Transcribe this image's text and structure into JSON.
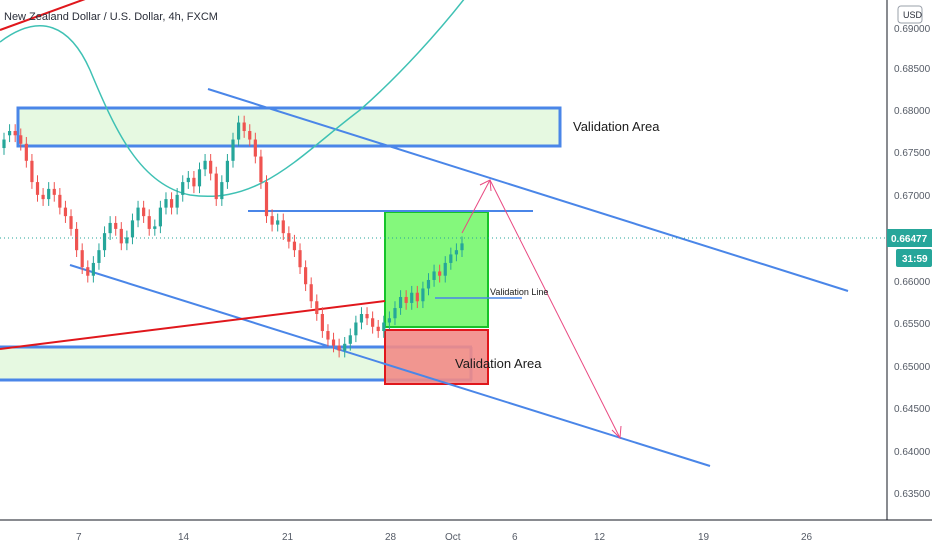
{
  "header": {
    "title": "New Zealand Dollar / U.S. Dollar, 4h, FXCM"
  },
  "price_axis": {
    "currency_badge": "USD",
    "ticks": [
      "0.69000",
      "0.68500",
      "0.68000",
      "0.67500",
      "0.67000",
      "0.66000",
      "0.65500",
      "0.65000",
      "0.64500",
      "0.64000",
      "0.63500"
    ],
    "current_price": "0.66477",
    "countdown": "31:59"
  },
  "time_axis": {
    "labels": [
      "7",
      "14",
      "21",
      "28",
      "Oct",
      "6",
      "12",
      "19",
      "26"
    ]
  },
  "annotations": {
    "upper_zone_label": "Validation Area",
    "lower_zone_label": "Validation Area",
    "line_label": "Validation Line"
  },
  "colors": {
    "trendline_blue": "#4a86e8",
    "trendline_red": "#e0171c",
    "zone_fill_green": "#e6f9e1",
    "box_green": "#6ef765",
    "box_red": "#f28b87",
    "candle_up": "#26a69a",
    "candle_down": "#ef5350",
    "curve": "#3fc1b4",
    "arrow": "#e94a82",
    "price_badge": "#26a69a"
  },
  "chart_data": {
    "type": "candlestick",
    "symbol": "NZDUSD",
    "timeframe": "4h",
    "ylim": [
      0.633,
      0.691
    ],
    "close_series": [
      [
        0.676,
        0.677
      ],
      [
        0.6775,
        0.678
      ],
      [
        0.678,
        0.6775
      ],
      [
        0.6775,
        0.6765
      ],
      [
        0.6765,
        0.6745
      ],
      [
        0.6745,
        0.672
      ],
      [
        0.672,
        0.6705
      ],
      [
        0.6705,
        0.67
      ],
      [
        0.67,
        0.6712
      ],
      [
        0.6712,
        0.6705
      ],
      [
        0.6705,
        0.669
      ],
      [
        0.669,
        0.668
      ],
      [
        0.668,
        0.6665
      ],
      [
        0.6665,
        0.664
      ],
      [
        0.664,
        0.662
      ],
      [
        0.662,
        0.661
      ],
      [
        0.661,
        0.6625
      ],
      [
        0.6625,
        0.664
      ],
      [
        0.664,
        0.666
      ],
      [
        0.666,
        0.6672
      ],
      [
        0.6672,
        0.6665
      ],
      [
        0.6665,
        0.6648
      ],
      [
        0.6648,
        0.6655
      ],
      [
        0.6655,
        0.6675
      ],
      [
        0.6675,
        0.669
      ],
      [
        0.669,
        0.668
      ],
      [
        0.668,
        0.6665
      ],
      [
        0.6665,
        0.6668
      ],
      [
        0.6668,
        0.669
      ],
      [
        0.669,
        0.67
      ],
      [
        0.67,
        0.669
      ],
      [
        0.669,
        0.6705
      ],
      [
        0.6705,
        0.672
      ],
      [
        0.672,
        0.6725
      ],
      [
        0.6725,
        0.6715
      ],
      [
        0.6715,
        0.6735
      ],
      [
        0.6735,
        0.6745
      ],
      [
        0.6745,
        0.673
      ],
      [
        0.673,
        0.67
      ],
      [
        0.67,
        0.672
      ],
      [
        0.672,
        0.6745
      ],
      [
        0.6745,
        0.677
      ],
      [
        0.677,
        0.679
      ],
      [
        0.679,
        0.678
      ],
      [
        0.678,
        0.677
      ],
      [
        0.677,
        0.675
      ],
      [
        0.675,
        0.672
      ],
      [
        0.672,
        0.668
      ],
      [
        0.668,
        0.667
      ],
      [
        0.667,
        0.6675
      ],
      [
        0.6675,
        0.666
      ],
      [
        0.666,
        0.665
      ],
      [
        0.665,
        0.664
      ],
      [
        0.664,
        0.662
      ],
      [
        0.662,
        0.66
      ],
      [
        0.66,
        0.658
      ],
      [
        0.658,
        0.6565
      ],
      [
        0.6565,
        0.6545
      ],
      [
        0.6545,
        0.6535
      ],
      [
        0.6535,
        0.6528
      ],
      [
        0.6528,
        0.6522
      ],
      [
        0.6522,
        0.653
      ],
      [
        0.653,
        0.654
      ],
      [
        0.654,
        0.6555
      ],
      [
        0.6555,
        0.6565
      ],
      [
        0.6565,
        0.656
      ],
      [
        0.656,
        0.655
      ],
      [
        0.655,
        0.6545
      ],
      [
        0.6545,
        0.6555
      ],
      [
        0.6555,
        0.656
      ],
      [
        0.656,
        0.6572
      ],
      [
        0.6572,
        0.6585
      ],
      [
        0.6585,
        0.6578
      ],
      [
        0.6578,
        0.659
      ],
      [
        0.659,
        0.658
      ],
      [
        0.658,
        0.6595
      ],
      [
        0.6595,
        0.6605
      ],
      [
        0.6605,
        0.6615
      ],
      [
        0.6615,
        0.661
      ],
      [
        0.661,
        0.6625
      ],
      [
        0.6625,
        0.6635
      ],
      [
        0.6635,
        0.664
      ],
      [
        0.664,
        0.6648
      ]
    ],
    "levels": {
      "upper_zone": [
        0.6758,
        0.6798
      ],
      "lower_zone": [
        0.6488,
        0.652
      ],
      "validation_line": 0.658,
      "resistance_line": 0.668
    },
    "legend": "none",
    "grid": false
  }
}
